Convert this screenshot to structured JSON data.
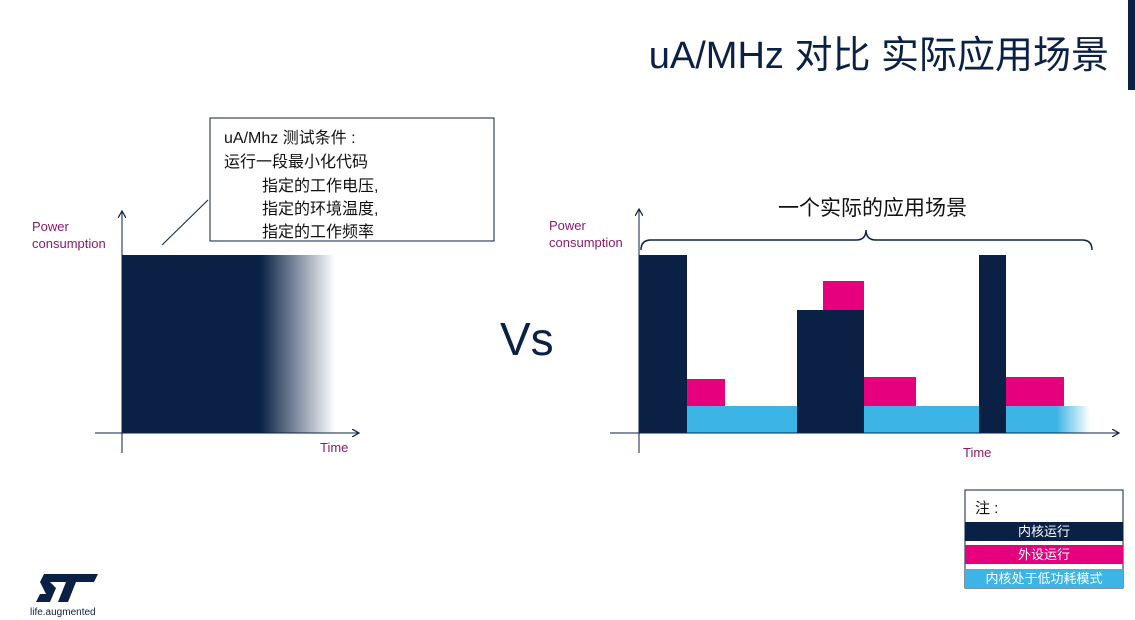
{
  "header": {
    "title": "uA/MHz 对比 实际应用场景"
  },
  "test_conditions": {
    "lines": [
      "uA/Mhz 测试条件 :",
      "运行一段最小化代码",
      "指定的工作电压,",
      "指定的环境温度,",
      "指定的工作频率"
    ]
  },
  "left_graph": {
    "y_label": "Power consumption",
    "x_label": "Time"
  },
  "versus": "Vs",
  "right_graph": {
    "brace_label": "一个实际的应用场景",
    "y_label": "Power consumption",
    "x_label": "Time"
  },
  "legend": {
    "title": "注 :",
    "items": [
      "内核运行",
      "外设运行",
      "内核处于低功耗模式"
    ]
  },
  "logo": {
    "tagline": "life.augmented"
  }
}
